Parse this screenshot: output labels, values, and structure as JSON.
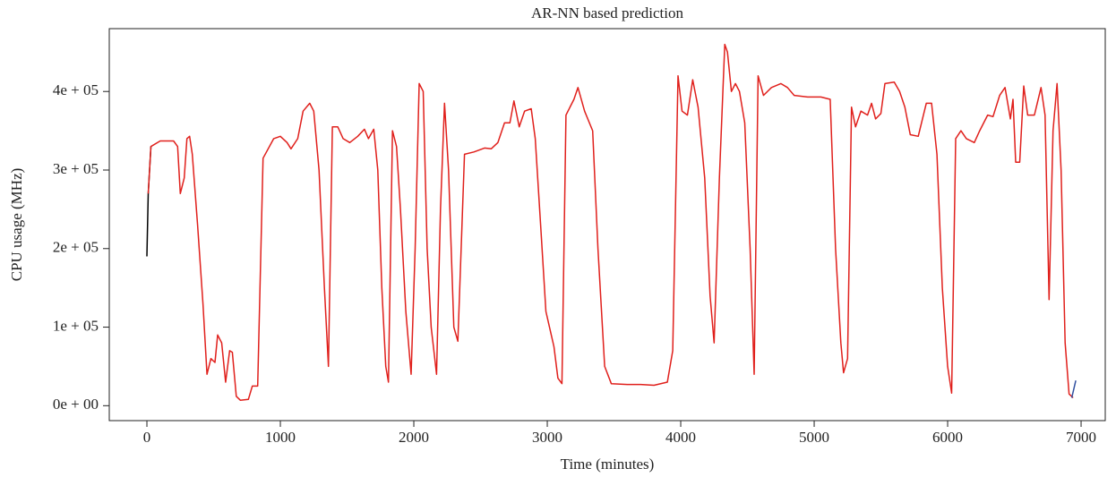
{
  "chart_data": {
    "type": "line",
    "title": "AR-NN based prediction",
    "x_label": "Time (minutes)",
    "y_label": "CPU usage (MHz)",
    "xlim": [
      -282,
      7181
    ],
    "ylim": [
      -19000,
      480000
    ],
    "xticks": [
      0,
      1000,
      2000,
      3000,
      4000,
      5000,
      6000,
      7000
    ],
    "yticks": [
      {
        "value": 0,
        "label": "0e + 00"
      },
      {
        "value": 100000,
        "label": "1e + 05"
      },
      {
        "value": 200000,
        "label": "2e + 05"
      },
      {
        "value": 300000,
        "label": "3e + 05"
      },
      {
        "value": 400000,
        "label": "4e + 05"
      }
    ],
    "series": [
      {
        "color": "#000000",
        "x": [
          0,
          10,
          30
        ],
        "values": [
          190000,
          270000,
          330000
        ]
      },
      {
        "color": "#e0201c",
        "x": [
          10,
          30,
          100,
          200,
          230,
          250,
          280,
          300,
          320,
          340,
          380,
          420,
          450,
          480,
          510,
          530,
          560,
          590,
          620,
          640,
          670,
          700,
          760,
          790,
          830,
          870,
          950,
          1000,
          1050,
          1080,
          1130,
          1170,
          1220,
          1250,
          1290,
          1330,
          1360,
          1390,
          1430,
          1470,
          1520,
          1580,
          1630,
          1660,
          1700,
          1730,
          1760,
          1790,
          1810,
          1840,
          1870,
          1900,
          1940,
          1980,
          2010,
          2040,
          2070,
          2100,
          2130,
          2170,
          2200,
          2230,
          2260,
          2300,
          2330,
          2380,
          2450,
          2530,
          2580,
          2630,
          2680,
          2720,
          2750,
          2790,
          2830,
          2880,
          2910,
          2950,
          2990,
          3050,
          3080,
          3110,
          3140,
          3200,
          3230,
          3280,
          3340,
          3380,
          3430,
          3480,
          3600,
          3700,
          3800,
          3900,
          3940,
          3980,
          4010,
          4050,
          4090,
          4130,
          4180,
          4220,
          4250,
          4290,
          4330,
          4350,
          4380,
          4410,
          4440,
          4480,
          4520,
          4550,
          4580,
          4620,
          4680,
          4750,
          4800,
          4850,
          4950,
          5050,
          5120,
          5160,
          5200,
          5220,
          5250,
          5280,
          5310,
          5350,
          5400,
          5430,
          5460,
          5500,
          5530,
          5600,
          5640,
          5680,
          5720,
          5780,
          5840,
          5880,
          5920,
          5960,
          6000,
          6030,
          6060,
          6100,
          6140,
          6200,
          6240,
          6300,
          6340,
          6390,
          6430,
          6470,
          6490,
          6510,
          6540,
          6570,
          6600,
          6650,
          6700,
          6730,
          6760,
          6790,
          6820,
          6850,
          6880,
          6910,
          6940
        ],
        "values": [
          270000,
          330000,
          337000,
          337000,
          330000,
          270000,
          290000,
          340000,
          343000,
          320000,
          230000,
          130000,
          40000,
          60000,
          55000,
          90000,
          80000,
          30000,
          70000,
          68000,
          12000,
          7000,
          8000,
          25000,
          25000,
          315000,
          340000,
          343000,
          335000,
          327000,
          340000,
          375000,
          385000,
          375000,
          300000,
          150000,
          50000,
          355000,
          355000,
          340000,
          335000,
          343000,
          352000,
          340000,
          352000,
          300000,
          150000,
          50000,
          30000,
          350000,
          330000,
          250000,
          120000,
          40000,
          200000,
          410000,
          400000,
          200000,
          100000,
          40000,
          250000,
          385000,
          300000,
          100000,
          82000,
          320000,
          323000,
          328000,
          327000,
          335000,
          360000,
          360000,
          388000,
          355000,
          375000,
          378000,
          340000,
          230000,
          120000,
          75000,
          35000,
          28000,
          370000,
          390000,
          405000,
          375000,
          350000,
          200000,
          50000,
          28000,
          27000,
          27000,
          26000,
          30000,
          70000,
          420000,
          375000,
          370000,
          415000,
          380000,
          290000,
          140000,
          80000,
          290000,
          460000,
          450000,
          400000,
          410000,
          400000,
          360000,
          200000,
          40000,
          420000,
          395000,
          405000,
          410000,
          405000,
          395000,
          393000,
          393000,
          390000,
          200000,
          80000,
          42000,
          60000,
          380000,
          355000,
          375000,
          370000,
          385000,
          365000,
          372000,
          410000,
          412000,
          400000,
          380000,
          345000,
          343000,
          385000,
          385000,
          320000,
          150000,
          50000,
          16000,
          340000,
          350000,
          340000,
          335000,
          350000,
          370000,
          368000,
          395000,
          405000,
          365000,
          390000,
          310000,
          310000,
          407000,
          370000,
          370000,
          405000,
          370000,
          135000,
          350000,
          410000,
          300000,
          80000,
          15000,
          10000
        ]
      },
      {
        "color": "#3050a0",
        "x": [
          6930,
          6960
        ],
        "values": [
          10000,
          32000
        ]
      }
    ]
  }
}
